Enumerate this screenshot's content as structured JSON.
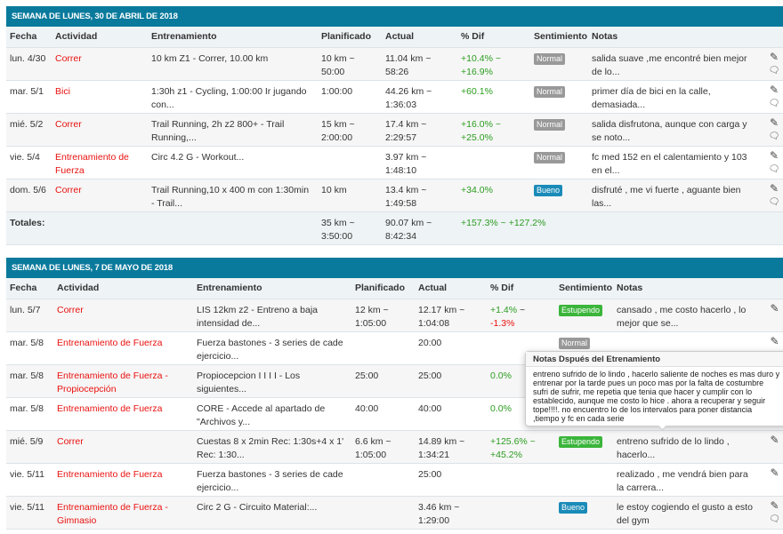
{
  "columns": {
    "fecha": "Fecha",
    "actividad": "Actividad",
    "entrenamiento": "Entrenamiento",
    "planificado": "Planificado",
    "actual": "Actual",
    "dif": "% Dif",
    "sentimiento": "Sentimiento",
    "notas": "Notas"
  },
  "colors": {
    "header": "#0a7a9c",
    "normal": "#999999",
    "bueno": "#1a8bb8",
    "estupendo": "#3bb53b"
  },
  "weeks": [
    {
      "title": "SEMANA DE LUNES, 30 DE ABRIL DE 2018",
      "rows": [
        {
          "fecha": "lun. 4/30",
          "actividad": "Correr",
          "entrenamiento": "10 km Z1 - Correr, 10.00 km",
          "planificado": "10 km ~ 50:00",
          "actual": "11.04 km ~ 58:26",
          "dif": "+10.4% ~ +16.9%",
          "sentimiento": "Normal",
          "notas": "salida suave ,me encontré bien mejor de lo..."
        },
        {
          "fecha": "mar. 5/1",
          "actividad": "Bici",
          "entrenamiento": "1:30h z1 - Cycling, 1:00:00 Ir jugando con...",
          "planificado": "1:00:00",
          "actual": "44.26 km ~ 1:36:03",
          "dif": "+60.1%",
          "sentimiento": "Normal",
          "notas": "primer día de bici en la calle, demasiada..."
        },
        {
          "fecha": "mié. 5/2",
          "actividad": "Correr",
          "entrenamiento": "Trail Running, 2h z2 800+ - Trail Running,...",
          "planificado": "15 km ~ 2:00:00",
          "actual": "17.4 km ~ 2:29:57",
          "dif": "+16.0% ~ +25.0%",
          "sentimiento": "Normal",
          "notas": "salida disfrutona, aunque con carga y se noto..."
        },
        {
          "fecha": "vie. 5/4",
          "actividad": "Entrenamiento de Fuerza",
          "entrenamiento": "Circ 4.2 G - Workout...",
          "planificado": "",
          "actual": "3.97 km ~ 1:48:10",
          "dif": "",
          "sentimiento": "Normal",
          "notas": "fc med 152 en el calentamiento y 103 en el..."
        },
        {
          "fecha": "dom. 5/6",
          "actividad": "Correr",
          "entrenamiento": "Trail Running,10 x 400 m con 1:30min - Trail...",
          "planificado": "10 km",
          "actual": "13.4 km ~ 1:49:58",
          "dif": "+34.0%",
          "sentimiento": "Bueno",
          "notas": "disfruté , me vi fuerte , aguante bien las..."
        }
      ],
      "totals": {
        "label": "Totales:",
        "planificado": "35 km ~ 3:50:00",
        "actual": "90.07 km ~ 8:42:34",
        "dif": "+157.3% ~ +127.2%"
      }
    },
    {
      "title": "SEMANA DE LUNES, 7 DE MAYO DE 2018",
      "rows": [
        {
          "fecha": "lun. 5/7",
          "actividad": "Correr",
          "entrenamiento": "LIS 12km z2 - Entreno a baja intensidad de...",
          "planificado": "12 km ~ 1:05:00",
          "actual": "12.17 km ~ 1:04:08",
          "dif": "+1.4%",
          "dif2": "-1.3%",
          "sentimiento": "Estupendo",
          "notas": "cansado , me costo hacerlo , lo mejor que se..."
        },
        {
          "fecha": "mar. 5/8",
          "actividad": "Entrenamiento de Fuerza",
          "entrenamiento": "Fuerza bastones - 3 series de cade ejercicio...",
          "planificado": "",
          "actual": "20:00",
          "dif": "",
          "sentimiento": "Normal",
          "notas": ""
        },
        {
          "fecha": "mar. 5/8",
          "actividad": "Entrenamiento de Fuerza - Propiocepción",
          "entrenamiento": "Propiocepcion I I I I - Los siguientes...",
          "planificado": "25:00",
          "actual": "25:00",
          "dif": "0.0%",
          "sentimiento": "",
          "notas": ""
        },
        {
          "fecha": "mar. 5/8",
          "actividad": "Entrenamiento de Fuerza",
          "entrenamiento": "CORE - Accede al apartado de \"Archivos y...",
          "planificado": "40:00",
          "actual": "40:00",
          "dif": "0.0%",
          "sentimiento": "",
          "notas": ""
        },
        {
          "fecha": "mié. 5/9",
          "actividad": "Correr",
          "entrenamiento": "Cuestas 8 x 2min Rec: 1:30s+4 x 1' Rec: 1:30...",
          "planificado": "6.6 km ~ 1:05:00",
          "actual": "14.89 km ~ 1:34:21",
          "dif": "+125.6% ~ +45.2%",
          "sentimiento": "Estupendo",
          "notas": "entreno sufrido de lo lindo , hacerlo..."
        },
        {
          "fecha": "vie. 5/11",
          "actividad": "Entrenamiento de Fuerza",
          "entrenamiento": "Fuerza bastones - 3 series de cade ejercicio...",
          "planificado": "",
          "actual": "25:00",
          "dif": "",
          "sentimiento": "",
          "notas": "realizado , me vendrá bien para la carrera..."
        },
        {
          "fecha": "vie. 5/11",
          "actividad": "Entrenamiento de Fuerza - Gimnasio",
          "entrenamiento": "Circ 2 G - Circuito Material:...",
          "planificado": "",
          "actual": "3.46 km ~ 1:29:00",
          "dif": "",
          "sentimiento": "Bueno",
          "notas": "le estoy cogiendo el gusto a esto del gym"
        }
      ]
    }
  ],
  "popover": {
    "title": "Notas Dspués del Etrenamiento",
    "body": "entreno sufrido de lo lindo , hacerlo saliente de noches es mas duro y entrenar por la tarde pues un poco mas por la falta de costumbre sufri de sufrir, me repetia que tenia que hacer y cumplir con lo establecido, aunque me costo lo hice . ahora a recuperar y seguir tope!!!!. no encuentro lo de los intervalos para poner distancia ,tiempo y fc en cada serie"
  }
}
